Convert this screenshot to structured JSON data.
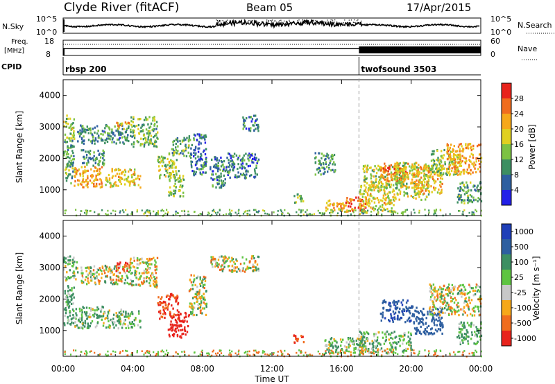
{
  "header": {
    "station": "Clyde River (fitACF)",
    "beam": "Beam 05",
    "date": "17/Apr/2015"
  },
  "top_panels": {
    "nsky": {
      "left_label": "N.Sky",
      "left_ticks": [
        "10^5",
        "10^0"
      ],
      "right_ticks": [
        "10^5",
        "10^0"
      ],
      "right_label": "N.Search"
    },
    "freq": {
      "left_label_line1": "Freq.",
      "left_label_line2": "[MHz]",
      "left_ticks": [
        "18",
        "8"
      ],
      "right_ticks": [
        "60",
        "0"
      ],
      "right_label": "Nave"
    },
    "cpid": {
      "label": "CPID",
      "segments": [
        {
          "name": "rbsp 200",
          "start_hour": 0,
          "end_hour": 17
        },
        {
          "name": "twofsound 3503",
          "start_hour": 17,
          "end_hour": 24
        }
      ]
    }
  },
  "power_panel": {
    "ylabel": "Slant Range [km]",
    "yticks": [
      "4000",
      "3000",
      "2000",
      "1000"
    ],
    "colorbar_label": "Power [dB]",
    "colorbar_ticks": [
      "28",
      "24",
      "20",
      "16",
      "12",
      "8",
      "4"
    ],
    "colorbar_colors": [
      "#e8231c",
      "#f06d1e",
      "#f6a81a",
      "#e0d020",
      "#7cc243",
      "#3d8f62",
      "#2e5fa0",
      "#2320e8"
    ]
  },
  "velocity_panel": {
    "ylabel": "Slant Range [km]",
    "yticks": [
      "4000",
      "3000",
      "2000",
      "1000"
    ],
    "colorbar_label": "Velocity [m s⁻¹]",
    "colorbar_ticks": [
      "1000",
      "500",
      "100",
      "25",
      "-25",
      "-100",
      "-500",
      "-1000"
    ],
    "colorbar_colors": [
      "#1f3fb8",
      "#2e5fa0",
      "#3d8f62",
      "#5ec441",
      "#c8c8c8",
      "#f6a81a",
      "#f06d1e",
      "#e8231c"
    ]
  },
  "xaxis": {
    "label": "Time UT",
    "ticks": [
      "00:00",
      "04:00",
      "08:00",
      "12:00",
      "16:00",
      "20:00",
      "00:00"
    ]
  },
  "chart_data": {
    "type": "heatmap",
    "title": "Clyde River (fitACF)   Beam 05   17/Apr/2015",
    "xlabel": "Time UT",
    "ylabel": "Slant Range [km]",
    "xlim_hours": [
      0,
      24
    ],
    "ylim_km": [
      180,
      4500
    ],
    "panels": [
      {
        "name": "Power [dB]",
        "range": [
          0,
          30
        ],
        "blobs": [
          {
            "t0": 0.0,
            "t1": 0.6,
            "r0": 1200,
            "r1": 2600,
            "v": 10
          },
          {
            "t0": 0.0,
            "t1": 0.6,
            "r0": 2600,
            "r1": 3400,
            "v": 14
          },
          {
            "t0": 0.6,
            "t1": 2.2,
            "r0": 1100,
            "r1": 1800,
            "v": 22
          },
          {
            "t0": 1.0,
            "t1": 2.4,
            "r0": 1800,
            "r1": 2300,
            "v": 9
          },
          {
            "t0": 0.8,
            "t1": 3.8,
            "r0": 2500,
            "r1": 3100,
            "v": 8
          },
          {
            "t0": 2.4,
            "t1": 4.4,
            "r0": 1100,
            "r1": 1700,
            "v": 18
          },
          {
            "t0": 3.0,
            "t1": 3.8,
            "r0": 2950,
            "r1": 3200,
            "v": 20
          },
          {
            "t0": 3.8,
            "t1": 5.4,
            "r0": 2400,
            "r1": 3350,
            "v": 12
          },
          {
            "t0": 5.4,
            "t1": 6.6,
            "r0": 1400,
            "r1": 2200,
            "v": 14
          },
          {
            "t0": 6.0,
            "t1": 6.9,
            "r0": 800,
            "r1": 1500,
            "v": 12
          },
          {
            "t0": 6.2,
            "t1": 7.2,
            "r0": 2100,
            "r1": 2700,
            "v": 10
          },
          {
            "t0": 7.2,
            "t1": 8.2,
            "r0": 1500,
            "r1": 2800,
            "v": 6
          },
          {
            "t0": 8.4,
            "t1": 9.4,
            "r0": 1100,
            "r1": 2100,
            "v": 7
          },
          {
            "t0": 9.4,
            "t1": 11.2,
            "r0": 1400,
            "r1": 2200,
            "v": 6
          },
          {
            "t0": 10.2,
            "t1": 11.2,
            "r0": 2900,
            "r1": 3400,
            "v": 7
          },
          {
            "t0": 13.2,
            "t1": 13.8,
            "r0": 600,
            "r1": 900,
            "v": 12
          },
          {
            "t0": 14.4,
            "t1": 15.6,
            "r0": 1500,
            "r1": 2200,
            "v": 8
          },
          {
            "t0": 15.0,
            "t1": 16.4,
            "r0": 350,
            "r1": 700,
            "v": 22
          },
          {
            "t0": 16.2,
            "t1": 17.4,
            "r0": 300,
            "r1": 800,
            "v": 26
          },
          {
            "t0": 17.0,
            "t1": 19.0,
            "r0": 300,
            "r1": 1200,
            "v": 18
          },
          {
            "t0": 17.2,
            "t1": 19.6,
            "r0": 1000,
            "r1": 1800,
            "v": 15
          },
          {
            "t0": 18.2,
            "t1": 19.8,
            "r0": 1300,
            "r1": 1900,
            "v": 25
          },
          {
            "t0": 19.0,
            "t1": 21.0,
            "r0": 700,
            "r1": 1900,
            "v": 16
          },
          {
            "t0": 20.0,
            "t1": 21.8,
            "r0": 900,
            "r1": 1800,
            "v": 20
          },
          {
            "t0": 21.0,
            "t1": 22.8,
            "r0": 1500,
            "r1": 2300,
            "v": 13
          },
          {
            "t0": 22.0,
            "t1": 24.0,
            "r0": 1500,
            "r1": 2500,
            "v": 22
          },
          {
            "t0": 22.6,
            "t1": 24.0,
            "r0": 600,
            "r1": 1300,
            "v": 10
          }
        ]
      },
      {
        "name": "Velocity [m s⁻¹]",
        "range": [
          -1000,
          1000
        ],
        "blobs": [
          {
            "t0": 0.0,
            "t1": 0.6,
            "r0": 1200,
            "r1": 2600,
            "v": 80
          },
          {
            "t0": 0.0,
            "t1": 0.8,
            "r0": 2600,
            "r1": 3400,
            "v": 60
          },
          {
            "t0": 0.6,
            "t1": 2.4,
            "r0": 1100,
            "r1": 1800,
            "v": 70
          },
          {
            "t0": 1.0,
            "t1": 3.8,
            "r0": 2500,
            "r1": 3100,
            "v": 0
          },
          {
            "t0": 2.4,
            "t1": 4.4,
            "r0": 1100,
            "r1": 1700,
            "v": 60
          },
          {
            "t0": 3.0,
            "t1": 3.8,
            "r0": 2900,
            "r1": 3200,
            "v": -300
          },
          {
            "t0": 3.8,
            "t1": 5.4,
            "r0": 2400,
            "r1": 3350,
            "v": 0
          },
          {
            "t0": 5.4,
            "t1": 6.6,
            "r0": 1400,
            "r1": 2200,
            "v": -300
          },
          {
            "t0": 6.0,
            "t1": 7.2,
            "r0": 800,
            "r1": 1600,
            "v": -400
          },
          {
            "t0": 7.2,
            "t1": 8.2,
            "r0": 1500,
            "r1": 2800,
            "v": 0
          },
          {
            "t0": 8.4,
            "t1": 11.2,
            "r0": 2900,
            "r1": 3400,
            "v": 0
          },
          {
            "t0": 13.2,
            "t1": 13.8,
            "r0": 600,
            "r1": 900,
            "v": -300
          },
          {
            "t0": 15.0,
            "t1": 17.4,
            "r0": 300,
            "r1": 800,
            "v": 40
          },
          {
            "t0": 17.0,
            "t1": 20.0,
            "r0": 300,
            "r1": 1000,
            "v": 60
          },
          {
            "t0": 18.2,
            "t1": 20.0,
            "r0": 1300,
            "r1": 2000,
            "v": 700
          },
          {
            "t0": 20.0,
            "t1": 21.8,
            "r0": 900,
            "r1": 1800,
            "v": 600
          },
          {
            "t0": 21.0,
            "t1": 24.0,
            "r0": 1500,
            "r1": 2500,
            "v": 0
          },
          {
            "t0": 22.6,
            "t1": 24.0,
            "r0": 600,
            "r1": 1300,
            "v": 80
          }
        ]
      }
    ]
  }
}
